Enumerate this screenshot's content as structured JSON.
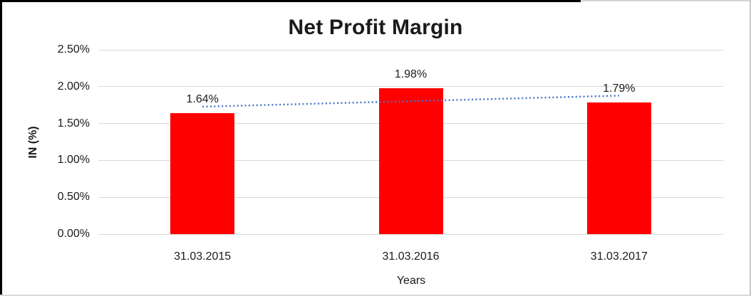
{
  "chart_data": {
    "type": "bar",
    "title": "Net Profit Margin",
    "xlabel": "Years",
    "ylabel": "IN (%)",
    "categories": [
      "31.03.2015",
      "31.03.2016",
      "31.03.2017"
    ],
    "values": [
      1.64,
      1.98,
      1.79
    ],
    "data_labels": [
      "1.64%",
      "1.98%",
      "1.79%"
    ],
    "ylim": [
      0,
      2.5
    ],
    "ytick_step": 0.5,
    "yticks": [
      "0.00%",
      "0.50%",
      "1.00%",
      "1.50%",
      "2.00%",
      "2.50%"
    ],
    "grid": "horizontal",
    "legend": "none",
    "bar_color": "#FF0000",
    "trendline": {
      "type": "linear",
      "style": "dotted",
      "color": "#4472C4"
    }
  },
  "colors": {
    "background": "#FFFFFF",
    "gridline": "#D9D9D9",
    "text": "#1A1A1A",
    "bar": "#FF0000",
    "trendline": "#4472C4"
  }
}
